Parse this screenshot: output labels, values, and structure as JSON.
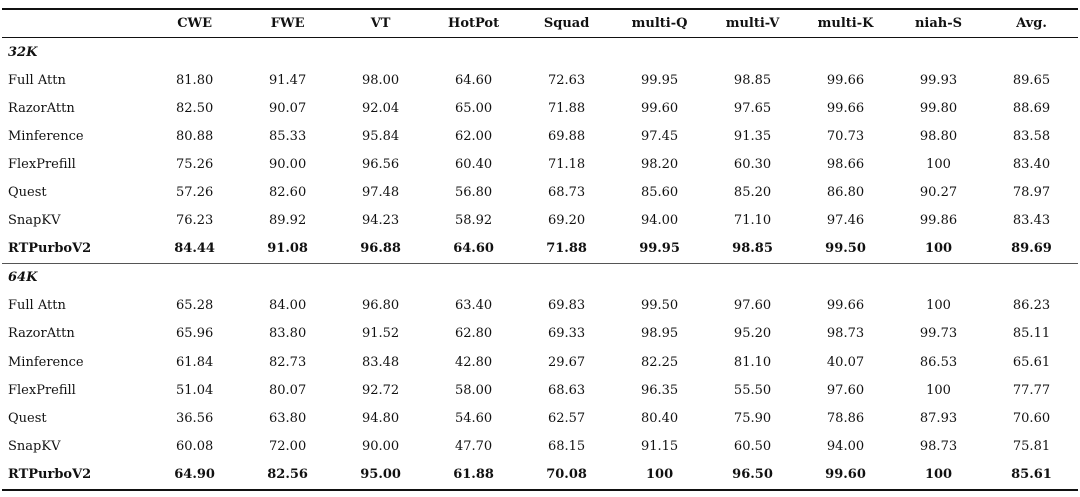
{
  "columns": [
    "",
    "CWE",
    "FWE",
    "VT",
    "HotPot",
    "Squad",
    "multi-Q",
    "multi-V",
    "multi-K",
    "niah-S",
    "Avg."
  ],
  "sections": [
    {
      "label": "32K",
      "rows": [
        {
          "method": "Full Attn",
          "values": [
            "81.80",
            "91.47",
            "98.00",
            "64.60",
            "72.63",
            "99.95",
            "98.85",
            "99.66",
            "99.93",
            "89.65"
          ]
        },
        {
          "method": "RazorAttn",
          "values": [
            "82.50",
            "90.07",
            "92.04",
            "65.00",
            "71.88",
            "99.60",
            "97.65",
            "99.66",
            "99.80",
            "88.69"
          ]
        },
        {
          "method": "Minference",
          "values": [
            "80.88",
            "85.33",
            "95.84",
            "62.00",
            "69.88",
            "97.45",
            "91.35",
            "70.73",
            "98.80",
            "83.58"
          ]
        },
        {
          "method": "FlexPrefill",
          "values": [
            "75.26",
            "90.00",
            "96.56",
            "60.40",
            "71.18",
            "98.20",
            "60.30",
            "98.66",
            "100",
            "83.40"
          ]
        },
        {
          "method": "Quest",
          "values": [
            "57.26",
            "82.60",
            "97.48",
            "56.80",
            "68.73",
            "85.60",
            "85.20",
            "86.80",
            "90.27",
            "78.97"
          ]
        },
        {
          "method": "SnapKV",
          "values": [
            "76.23",
            "89.92",
            "94.23",
            "58.92",
            "69.20",
            "94.00",
            "71.10",
            "97.46",
            "99.86",
            "83.43"
          ]
        },
        {
          "method": "RTPurboV2",
          "values": [
            "84.44",
            "91.08",
            "96.88",
            "64.60",
            "71.88",
            "99.95",
            "98.85",
            "99.50",
            "100",
            "89.69"
          ],
          "bold": true
        }
      ]
    },
    {
      "label": "64K",
      "rows": [
        {
          "method": "Full Attn",
          "values": [
            "65.28",
            "84.00",
            "96.80",
            "63.40",
            "69.83",
            "99.50",
            "97.60",
            "99.66",
            "100",
            "86.23"
          ]
        },
        {
          "method": "RazorAttn",
          "values": [
            "65.96",
            "83.80",
            "91.52",
            "62.80",
            "69.33",
            "98.95",
            "95.20",
            "98.73",
            "99.73",
            "85.11"
          ]
        },
        {
          "method": "Minference",
          "values": [
            "61.84",
            "82.73",
            "83.48",
            "42.80",
            "29.67",
            "82.25",
            "81.10",
            "40.07",
            "86.53",
            "65.61"
          ]
        },
        {
          "method": "FlexPrefill",
          "values": [
            "51.04",
            "80.07",
            "92.72",
            "58.00",
            "68.63",
            "96.35",
            "55.50",
            "97.60",
            "100",
            "77.77"
          ]
        },
        {
          "method": "Quest",
          "values": [
            "36.56",
            "63.80",
            "94.80",
            "54.60",
            "62.57",
            "80.40",
            "75.90",
            "78.86",
            "87.93",
            "70.60"
          ]
        },
        {
          "method": "SnapKV",
          "values": [
            "60.08",
            "72.00",
            "90.00",
            "47.70",
            "68.15",
            "91.15",
            "60.50",
            "94.00",
            "98.73",
            "75.81"
          ]
        },
        {
          "method": "RTPurboV2",
          "values": [
            "64.90",
            "82.56",
            "95.00",
            "61.88",
            "70.08",
            "100",
            "96.50",
            "99.60",
            "100",
            "85.61"
          ],
          "bold": true
        }
      ]
    }
  ]
}
